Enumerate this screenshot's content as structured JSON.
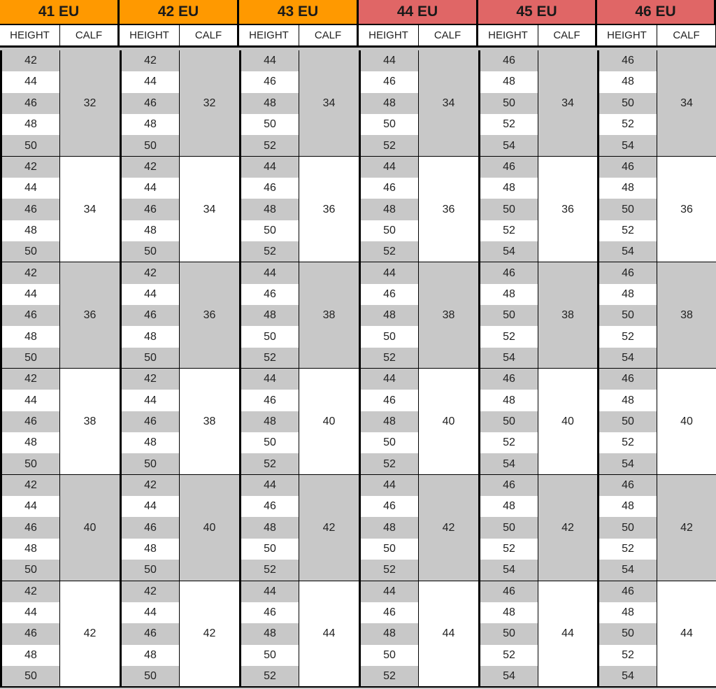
{
  "columns_labels": {
    "height": "HEIGHT",
    "calf": "CALF"
  },
  "colors": {
    "orange": "#FF9900",
    "red": "#E06666",
    "gray": "#C8C8C8"
  },
  "sizes": [
    {
      "label": "41 EU",
      "color": "#FF9900",
      "heights": [
        "42",
        "44",
        "46",
        "48",
        "50"
      ],
      "calves": [
        "32",
        "34",
        "36",
        "38",
        "40",
        "42"
      ]
    },
    {
      "label": "42 EU",
      "color": "#FF9900",
      "heights": [
        "42",
        "44",
        "46",
        "48",
        "50"
      ],
      "calves": [
        "32",
        "34",
        "36",
        "38",
        "40",
        "42"
      ]
    },
    {
      "label": "43 EU",
      "color": "#FF9900",
      "heights": [
        "44",
        "46",
        "48",
        "50",
        "52"
      ],
      "calves": [
        "34",
        "36",
        "38",
        "40",
        "42",
        "44"
      ]
    },
    {
      "label": "44 EU",
      "color": "#E06666",
      "heights": [
        "44",
        "46",
        "48",
        "50",
        "52"
      ],
      "calves": [
        "34",
        "36",
        "38",
        "40",
        "42",
        "44"
      ]
    },
    {
      "label": "45 EU",
      "color": "#E06666",
      "heights": [
        "46",
        "48",
        "50",
        "52",
        "54"
      ],
      "calves": [
        "34",
        "36",
        "38",
        "40",
        "42",
        "44"
      ]
    },
    {
      "label": "46 EU",
      "color": "#E06666",
      "heights": [
        "46",
        "48",
        "50",
        "52",
        "54"
      ],
      "calves": [
        "34",
        "36",
        "38",
        "40",
        "42",
        "44"
      ]
    }
  ]
}
